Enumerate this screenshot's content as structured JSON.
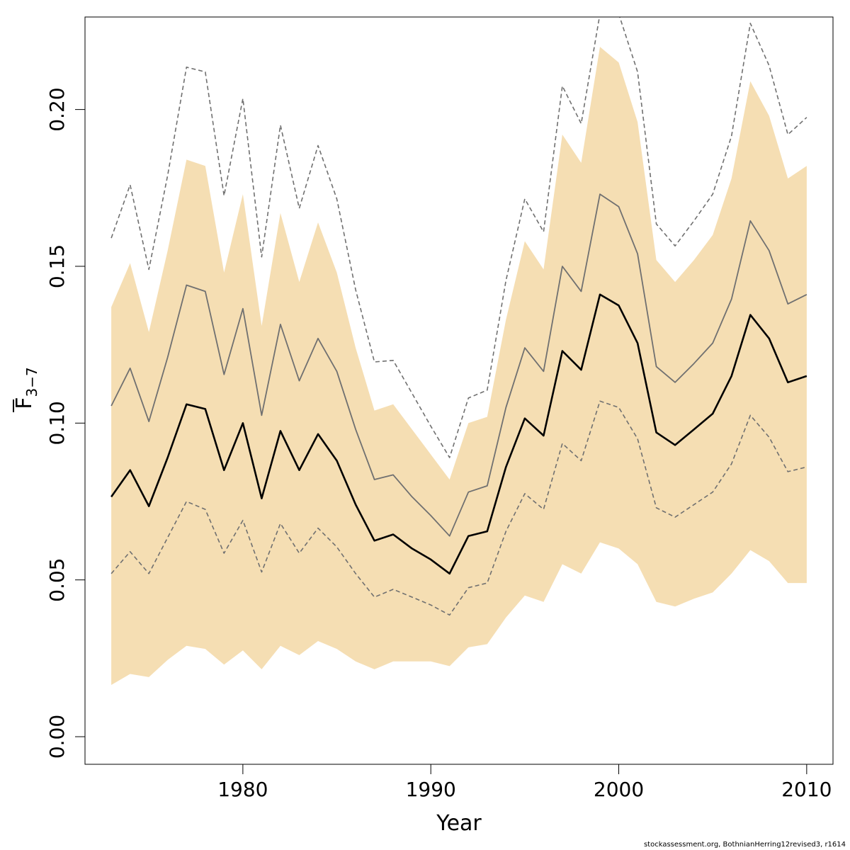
{
  "chart_data": {
    "type": "area",
    "title": "",
    "xlabel": "Year",
    "ylabel_main": "F",
    "ylabel_sub": "3−7",
    "xlim": [
      1971.6,
      2011.4
    ],
    "ylim": [
      -0.0088,
      0.2295
    ],
    "x_ticks": [
      1980,
      1990,
      2000,
      2010
    ],
    "y_ticks": [
      0.0,
      0.05,
      0.1,
      0.15,
      0.2
    ],
    "y_tick_labels": [
      "0.00",
      "0.05",
      "0.10",
      "0.15",
      "0.20"
    ],
    "grid": false,
    "legend": "none",
    "colors": {
      "band": "#f5deb3",
      "median": "#000000",
      "quantile": "#707070",
      "dashed": "#707070"
    },
    "x": [
      1973,
      1974,
      1975,
      1976,
      1977,
      1978,
      1979,
      1980,
      1981,
      1982,
      1983,
      1984,
      1985,
      1986,
      1987,
      1988,
      1989,
      1990,
      1991,
      1992,
      1993,
      1994,
      1995,
      1996,
      1997,
      1998,
      1999,
      2000,
      2001,
      2002,
      2003,
      2004,
      2005,
      2006,
      2007,
      2008,
      2009,
      2010
    ],
    "series": [
      {
        "role": "band_upper",
        "values": [
          0.137,
          0.151,
          0.129,
          0.155,
          0.184,
          0.182,
          0.148,
          0.173,
          0.131,
          0.167,
          0.145,
          0.164,
          0.148,
          0.124,
          0.104,
          0.106,
          0.098,
          0.09,
          0.082,
          0.1,
          0.102,
          0.133,
          0.158,
          0.149,
          0.192,
          0.183,
          0.22,
          0.215,
          0.196,
          0.152,
          0.145,
          0.152,
          0.16,
          0.178,
          0.209,
          0.198,
          0.178,
          0.182
        ]
      },
      {
        "role": "band_lower",
        "values": [
          0.0165,
          0.02,
          0.019,
          0.0245,
          0.029,
          0.028,
          0.023,
          0.0275,
          0.0215,
          0.029,
          0.026,
          0.0305,
          0.028,
          0.024,
          0.0215,
          0.024,
          0.024,
          0.024,
          0.0225,
          0.0285,
          0.0295,
          0.038,
          0.045,
          0.043,
          0.055,
          0.052,
          0.062,
          0.06,
          0.055,
          0.043,
          0.0415,
          0.044,
          0.046,
          0.052,
          0.0595,
          0.056,
          0.049,
          0.049
        ]
      },
      {
        "role": "median",
        "values": [
          0.0765,
          0.085,
          0.0735,
          0.089,
          0.106,
          0.1045,
          0.085,
          0.1,
          0.076,
          0.0975,
          0.085,
          0.0965,
          0.088,
          0.074,
          0.0625,
          0.0645,
          0.06,
          0.0565,
          0.052,
          0.064,
          0.0655,
          0.086,
          0.1015,
          0.096,
          0.123,
          0.117,
          0.141,
          0.1375,
          0.1255,
          0.097,
          0.093,
          0.098,
          0.103,
          0.115,
          0.1345,
          0.127,
          0.113,
          0.115
        ]
      },
      {
        "role": "upper_quantile",
        "values": [
          0.1055,
          0.1175,
          0.1005,
          0.121,
          0.144,
          0.142,
          0.1155,
          0.1365,
          0.1025,
          0.1315,
          0.1135,
          0.127,
          0.1165,
          0.098,
          0.082,
          0.0835,
          0.0765,
          0.0705,
          0.064,
          0.078,
          0.08,
          0.105,
          0.124,
          0.1165,
          0.15,
          0.142,
          0.173,
          0.169,
          0.154,
          0.118,
          0.113,
          0.119,
          0.1255,
          0.1395,
          0.1645,
          0.155,
          0.138,
          0.141
        ]
      },
      {
        "role": "upper_dashed",
        "values": [
          0.159,
          0.176,
          0.149,
          0.179,
          0.2135,
          0.212,
          0.1725,
          0.2035,
          0.153,
          0.195,
          0.1685,
          0.1885,
          0.1715,
          0.1425,
          0.1195,
          0.12,
          0.1095,
          0.099,
          0.089,
          0.108,
          0.1105,
          0.1455,
          0.1715,
          0.161,
          0.2075,
          0.1955,
          0.2305,
          0.2305,
          0.212,
          0.1635,
          0.1565,
          0.1645,
          0.173,
          0.1915,
          0.2275,
          0.214,
          0.192,
          0.1975
        ]
      },
      {
        "role": "lower_dashed",
        "values": [
          0.052,
          0.059,
          0.052,
          0.0635,
          0.075,
          0.0725,
          0.0585,
          0.069,
          0.0525,
          0.068,
          0.0585,
          0.0665,
          0.0605,
          0.052,
          0.0445,
          0.047,
          0.0445,
          0.042,
          0.0388,
          0.0475,
          0.049,
          0.0655,
          0.0775,
          0.0725,
          0.0935,
          0.088,
          0.107,
          0.105,
          0.095,
          0.073,
          0.07,
          0.074,
          0.078,
          0.087,
          0.1025,
          0.0955,
          0.0845,
          0.086
        ]
      }
    ]
  },
  "footer": "stockassessment.org, BothnianHerring12revised3, r1614"
}
